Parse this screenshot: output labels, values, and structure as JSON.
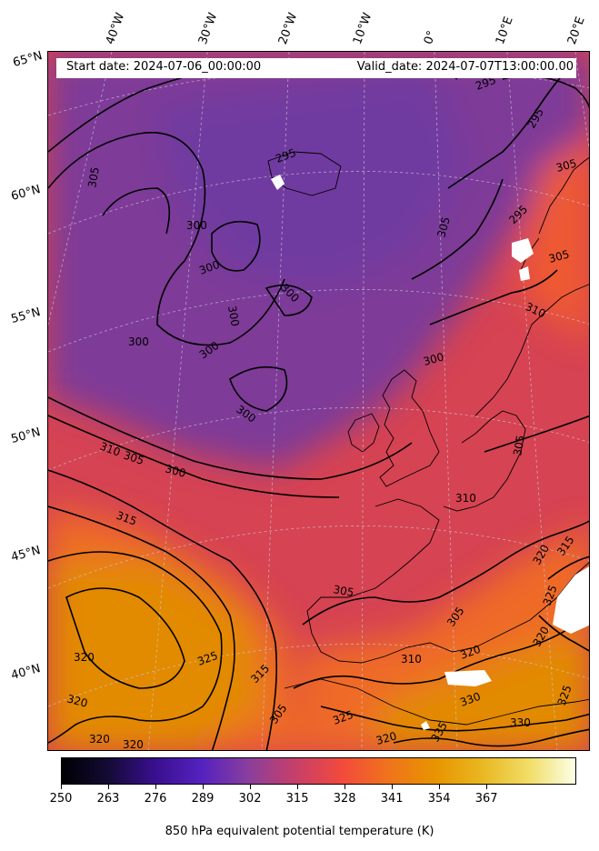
{
  "header": {
    "start_date": "Start date: 2024-07-06_00:00:00",
    "valid_date": "Valid_date: 2024-07-07T13:00:00.00"
  },
  "longitude_labels": [
    "40°W",
    "30°W",
    "20°W",
    "10°W",
    "0°",
    "10°E",
    "20°E"
  ],
  "latitude_labels": [
    "65°N",
    "60°N",
    "55°N",
    "50°N",
    "45°N",
    "40°N"
  ],
  "contour_labels": [
    "305",
    "300",
    "300",
    "300",
    "300",
    "300",
    "300",
    "300",
    "300",
    "305",
    "310",
    "305",
    "300",
    "315",
    "320",
    "320",
    "320",
    "320",
    "325",
    "315",
    "305",
    "325",
    "320",
    "330",
    "330",
    "335",
    "310",
    "305",
    "305",
    "310",
    "305",
    "305",
    "310",
    "305",
    "305",
    "300",
    "295",
    "295",
    "320",
    "320",
    "325",
    "325",
    "320",
    "315"
  ],
  "colorbar": {
    "title": "850 hPa equivalent potential temperature (K)",
    "ticks": [
      "250",
      "263",
      "276",
      "289",
      "302",
      "315",
      "328",
      "341",
      "354",
      "367"
    ],
    "colors": [
      "#000004",
      "#140b35",
      "#3a0f8f",
      "#5522c0",
      "#8a3f9c",
      "#c73f6a",
      "#f24a3c",
      "#f0731c",
      "#e89400",
      "#e9b721",
      "#f2dd66",
      "#fcffe6"
    ]
  },
  "colors": {
    "cool_purple": "#7e3b98",
    "mid_red": "#d94352",
    "warm_orange": "#ef6a28",
    "hot_amber": "#e28a06",
    "missing": "#ffffff"
  }
}
